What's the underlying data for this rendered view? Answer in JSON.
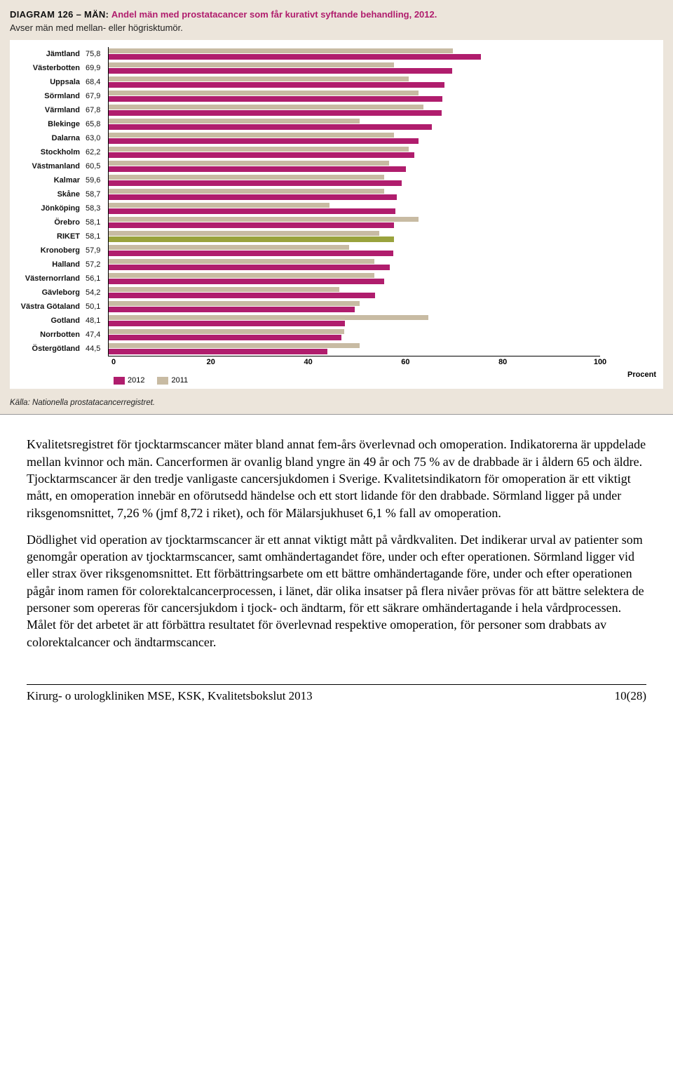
{
  "chart": {
    "diagram_label": "DIAGRAM 126 – MÄN:",
    "title": "Andel män med prostatacancer som får kurativt syftande behandling, 2012.",
    "subtitle": "Avser män med mellan- eller högrisktumör.",
    "type": "grouped-horizontal-bar",
    "xlim": [
      0,
      100
    ],
    "xticks": [
      0,
      20,
      40,
      60,
      80,
      100
    ],
    "x_unit_label": "Procent",
    "colors": {
      "series_2012": "#b01d6d",
      "series_2011": "#c8bba3",
      "series_riket": "#9aa33d",
      "grid": "#000000",
      "panel_bg": "#ece5db",
      "plot_bg": "#ffffff",
      "title_color": "#b01d6d"
    },
    "font": {
      "label_size_pt": 11,
      "title_size_pt": 13,
      "family": "Verdana"
    },
    "legend": [
      {
        "label": "2012",
        "color": "#b01d6d"
      },
      {
        "label": "2011",
        "color": "#c8bba3"
      }
    ],
    "categories": [
      {
        "name": "Jämtland",
        "v2012": 75.8,
        "v2011": 70
      },
      {
        "name": "Västerbotten",
        "v2012": 69.9,
        "v2011": 58
      },
      {
        "name": "Uppsala",
        "v2012": 68.4,
        "v2011": 61
      },
      {
        "name": "Sörmland",
        "v2012": 67.9,
        "v2011": 63
      },
      {
        "name": "Värmland",
        "v2012": 67.8,
        "v2011": 64
      },
      {
        "name": "Blekinge",
        "v2012": 65.8,
        "v2011": 51
      },
      {
        "name": "Dalarna",
        "v2012": 63.0,
        "v2011": 58
      },
      {
        "name": "Stockholm",
        "v2012": 62.2,
        "v2011": 61
      },
      {
        "name": "Västmanland",
        "v2012": 60.5,
        "v2011": 57
      },
      {
        "name": "Kalmar",
        "v2012": 59.6,
        "v2011": 56
      },
      {
        "name": "Skåne",
        "v2012": 58.7,
        "v2011": 56
      },
      {
        "name": "Jönköping",
        "v2012": 58.3,
        "v2011": 45
      },
      {
        "name": "Örebro",
        "v2012": 58.1,
        "v2011": 63
      },
      {
        "name": "RIKET",
        "v2012": 58.1,
        "v2011": 55,
        "riket": true
      },
      {
        "name": "Kronoberg",
        "v2012": 57.9,
        "v2011": 49
      },
      {
        "name": "Halland",
        "v2012": 57.2,
        "v2011": 54
      },
      {
        "name": "Västernorrland",
        "v2012": 56.1,
        "v2011": 54
      },
      {
        "name": "Gävleborg",
        "v2012": 54.2,
        "v2011": 47
      },
      {
        "name": "Västra Götaland",
        "v2012": 50.1,
        "v2011": 51
      },
      {
        "name": "Gotland",
        "v2012": 48.1,
        "v2011": 65
      },
      {
        "name": "Norrbotten",
        "v2012": 47.4,
        "v2011": 48
      },
      {
        "name": "Östergötland",
        "v2012": 44.5,
        "v2011": 51
      }
    ],
    "source": "Källa: Nationella prostatacancerregistret."
  },
  "paragraphs": {
    "p1": "Kvalitetsregistret för tjocktarmscancer mäter bland annat fem-års överlevnad och omoperation. Indikatorerna är uppdelade mellan kvinnor och män. Cancerformen är ovanlig bland yngre än 49 år och 75 % av de drabbade är i åldern 65 och äldre. Tjocktarmscancer är den tredje vanligaste cancersjukdomen i Sverige. Kvalitetsindikatorn för omoperation är ett viktigt mått, en omoperation innebär en oförutsedd händelse och ett stort lidande för den drabbade. Sörmland ligger på under riksgenomsnittet, 7,26 % (jmf 8,72 i riket), och för Mälarsjukhuset 6,1 % fall av omoperation.",
    "p2": "Dödlighet vid operation av tjocktarmscancer är ett annat viktigt mått på vårdkvaliten. Det indikerar urval av patienter som genomgår operation av tjocktarmscancer, samt omhändertagandet före, under och efter operationen. Sörmland ligger vid eller strax över riksgenomsnittet. Ett förbättringsarbete om ett bättre omhändertagande före, under och efter operationen pågår inom ramen för colorektalcancerprocessen, i länet, där olika insatser på flera nivåer prövas för att bättre selektera de personer som opereras för cancersjukdom i tjock- och ändtarm, för ett säkrare omhändertagande i hela vårdprocessen. Målet för det arbetet är att förbättra resultatet för överlevnad respektive omoperation, för personer som drabbats av colorektalcancer och ändtarmscancer."
  },
  "footer": {
    "left": "Kirurg- o urologkliniken MSE, KSK, Kvalitetsbokslut 2013",
    "right": "10(28)"
  }
}
